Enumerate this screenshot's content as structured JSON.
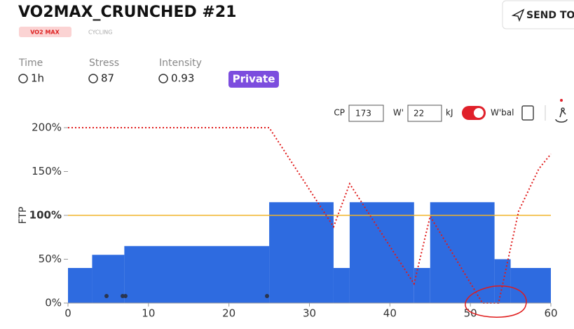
{
  "header": {
    "title": "VO2MAX_CRUNCHED #21",
    "tag": "VO2 MAX",
    "sport": "CYCLING",
    "send_button": "SEND TO",
    "privacy": "Private"
  },
  "stats": [
    {
      "label": "Time",
      "value": "1h"
    },
    {
      "label": "Stress",
      "value": "87"
    },
    {
      "label": "Intensity",
      "value": "0.93"
    }
  ],
  "controls": {
    "cp_label": "CP",
    "cp_value": "173",
    "w_label": "W'",
    "w_value": "22",
    "w_unit": "kJ",
    "wbal_label": "W'bal"
  },
  "chart_data": {
    "type": "bar",
    "ylabel": "FTP",
    "bars": [
      {
        "start": 0,
        "end": 3,
        "value": 40
      },
      {
        "start": 3,
        "end": 7,
        "value": 55
      },
      {
        "start": 7,
        "end": 25,
        "value": 65
      },
      {
        "start": 25,
        "end": 33,
        "value": 115
      },
      {
        "start": 33,
        "end": 35,
        "value": 40
      },
      {
        "start": 35,
        "end": 43,
        "value": 115
      },
      {
        "start": 43,
        "end": 45,
        "value": 40
      },
      {
        "start": 45,
        "end": 53,
        "value": 115
      },
      {
        "start": 53,
        "end": 55,
        "value": 50
      },
      {
        "start": 55,
        "end": 60,
        "value": 40
      }
    ],
    "color": "#2e6be0",
    "reference_line": {
      "value": 100,
      "color": "#f0b429"
    },
    "wbal": {
      "color": "#e01b1b",
      "x": [
        0,
        25,
        33,
        35,
        43,
        45,
        51.5,
        53.5,
        56,
        58.5,
        60
      ],
      "values": [
        200,
        200,
        87,
        136,
        22,
        99,
        0,
        0,
        105,
        153,
        170
      ]
    },
    "xlim": [
      0,
      60
    ],
    "xticks": [
      0,
      10,
      20,
      30,
      40,
      50,
      60
    ],
    "ylim": [
      0,
      200
    ],
    "yticks": [
      {
        "value": 0,
        "label": "0%"
      },
      {
        "value": 50,
        "label": "50%"
      },
      {
        "value": 100,
        "label": "100%"
      },
      {
        "value": 150,
        "label": "150%"
      },
      {
        "value": 200,
        "label": "200%"
      }
    ]
  }
}
